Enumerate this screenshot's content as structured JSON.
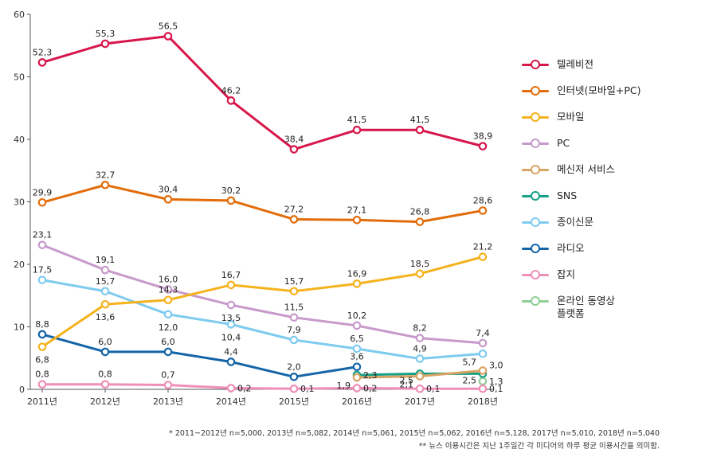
{
  "chart_data": {
    "type": "line",
    "categories": [
      "2011년",
      "2012년",
      "2013년",
      "2014년",
      "2015년",
      "2016년",
      "2017년",
      "2018년"
    ],
    "ylim": [
      0,
      60
    ],
    "yticks": [
      0,
      10,
      20,
      30,
      40,
      50,
      60
    ],
    "grid": false,
    "legend_position": "right",
    "series": [
      {
        "name": "텔레비전",
        "color": "#d7164a",
        "values": [
          52.3,
          55.3,
          56.5,
          46.2,
          38.4,
          41.5,
          41.5,
          38.9
        ],
        "labels": [
          "52,3",
          "55,3",
          "56,5",
          "46,2",
          "38,4",
          "41,5",
          "41,5",
          "38,9"
        ]
      },
      {
        "name": "인터넷(모바일+PC)",
        "color": "#e36c0a",
        "values": [
          29.9,
          32.7,
          30.4,
          30.2,
          27.2,
          27.1,
          26.8,
          28.6
        ],
        "labels": [
          "29,9",
          "32,7",
          "30,4",
          "30,2",
          "27,2",
          "27,1",
          "26,8",
          "28,6"
        ]
      },
      {
        "name": "모바일",
        "color": "#f5b21d",
        "values": [
          6.8,
          13.6,
          14.3,
          16.7,
          15.7,
          16.9,
          18.5,
          21.2
        ],
        "labels": [
          "6,8",
          "13,6",
          "14,3",
          "16,7",
          "15,7",
          "16,9",
          "18,5",
          "21,2"
        ]
      },
      {
        "name": "PC",
        "color": "#c79acb",
        "values": [
          23.1,
          19.1,
          16.0,
          13.5,
          11.5,
          10.2,
          8.2,
          7.4
        ],
        "labels": [
          "23,1",
          "19,1",
          "16,0",
          "13,5",
          "11,5",
          "10,2",
          "8,2",
          "7,4"
        ]
      },
      {
        "name": "메신저 서비스",
        "color": "#d9a464",
        "values": [
          null,
          null,
          null,
          null,
          null,
          1.9,
          2.1,
          3.0
        ],
        "labels": [
          "",
          "",
          "",
          "",
          "",
          "1,9",
          "2,1",
          "3,0"
        ]
      },
      {
        "name": "SNS",
        "color": "#16a085",
        "values": [
          null,
          null,
          null,
          null,
          null,
          2.3,
          2.5,
          2.5
        ],
        "labels": [
          "",
          "",
          "",
          "",
          "",
          "2,3",
          "2,5",
          "2,5"
        ]
      },
      {
        "name": "종이신문",
        "color": "#7ecbef",
        "values": [
          17.5,
          15.7,
          12.0,
          10.4,
          7.9,
          6.5,
          4.9,
          5.7
        ],
        "labels": [
          "17,5",
          "15,7",
          "12,0",
          "10,4",
          "7,9",
          "6,5",
          "4,9",
          "5,7"
        ]
      },
      {
        "name": "라디오",
        "color": "#1464a8",
        "values": [
          8.8,
          6.0,
          6.0,
          4.4,
          2.0,
          3.6,
          null,
          null
        ],
        "labels": [
          "8,8",
          "6,0",
          "6,0",
          "4,4",
          "2,0",
          "3,6",
          "",
          ""
        ]
      },
      {
        "name": "잡지",
        "color": "#ef8fb7",
        "values": [
          0.8,
          0.8,
          0.7,
          0.2,
          0.1,
          0.2,
          0.1,
          0.1
        ],
        "labels": [
          "0,8",
          "0,8",
          "0,7",
          "0,2",
          "0,1",
          "0,2",
          "0,1",
          "0,1"
        ]
      },
      {
        "name": "온라인 동영상\n플랫폼",
        "color": "#8fcf95",
        "values": [
          null,
          null,
          null,
          null,
          null,
          null,
          null,
          1.3
        ],
        "labels": [
          "",
          "",
          "",
          "",
          "",
          "",
          "",
          "1,3"
        ]
      }
    ],
    "notes": [
      "* 2011~2012년 n=5,000, 2013년 n=5,082, 2014년 n=5,061, 2015년 n=5,062, 2016년 n=5,128, 2017년 n=5,010, 2018년 n=5,040",
      "** 뉴스 이용시간은 지난 1주일간 각 미디어의 하루 평균 이용시간을 의미함."
    ]
  }
}
